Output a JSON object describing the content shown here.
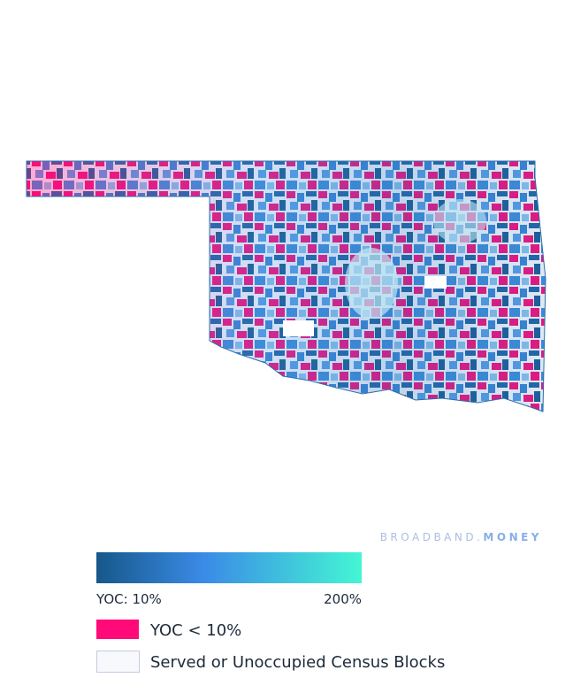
{
  "watermark": {
    "prefix": "BROADBAND.",
    "suffix": "MONEY"
  },
  "legend": {
    "scale_min_label": "YOC: 10%",
    "scale_max_label": "200%",
    "items": [
      {
        "label": "YOC < 10%"
      },
      {
        "label": "Served or Unoccupied Census Blocks"
      }
    ]
  }
}
